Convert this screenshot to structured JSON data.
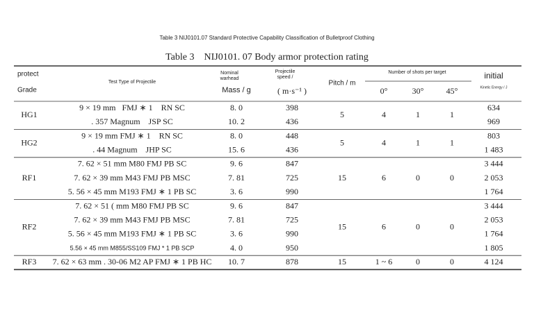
{
  "title": "Table 3 NIJ0101.07 Standard Protective Capability Classification of Bulletproof Clothing",
  "caption": "Table 3    NIJ0101. 07 Body armor protection rating",
  "header": {
    "grade": [
      "protect",
      "Grade"
    ],
    "projectile": "Test Type of Projectile",
    "mass": [
      "Nominal",
      "warhead",
      "Mass / g"
    ],
    "speed": [
      "Projectile",
      "speed /",
      "( m·s⁻¹ )"
    ],
    "pitch": "Pitch / m",
    "shots": "Number of shots per target",
    "angles": [
      "0°",
      "30°",
      "45°"
    ],
    "energy": [
      "initial",
      "Kinetic Energy / J"
    ]
  },
  "groups": [
    {
      "grade": "HG1",
      "pitch": "5",
      "shots": [
        "4",
        "1",
        "1"
      ],
      "rows": [
        [
          "9 × 19 mm   FMJ ∗ 1    RN SC",
          "8. 0",
          "398",
          "634"
        ],
        [
          ". 357 Magnum    JSP SC",
          "10. 2",
          "436",
          "969"
        ]
      ]
    },
    {
      "grade": "HG2",
      "pitch": "5",
      "shots": [
        "4",
        "1",
        "1"
      ],
      "rows": [
        [
          "9 × 19 mm FMJ ∗ 1    RN SC",
          "8. 0",
          "448",
          "803"
        ],
        [
          ". 44 Magnum    JHP SC",
          "15. 6",
          "436",
          "1 483"
        ]
      ]
    },
    {
      "grade": "RF1",
      "pitch": "15",
      "shots": [
        "6",
        "0",
        "0"
      ],
      "rows": [
        [
          "7. 62 × 51 mm M80 FMJ PB SC",
          "9. 6",
          "847",
          "3 444"
        ],
        [
          "7. 62 × 39 mm M43 FMJ PB MSC",
          "7. 81",
          "725",
          "2 053"
        ],
        [
          "5. 56 × 45 mm M193 FMJ ∗ 1 PB SC",
          "3. 6",
          "990",
          "1 764"
        ]
      ]
    },
    {
      "grade": "RF2",
      "pitch": "15",
      "shots": [
        "6",
        "0",
        "0"
      ],
      "rows": [
        [
          "7. 62 × 51 ( mm M80 FMJ PB SC",
          "9. 6",
          "847",
          "3 444"
        ],
        [
          "7. 62 × 39 mm M43 FMJ PB MSC",
          "7. 81",
          "725",
          "2 053"
        ],
        [
          "5. 56 × 45 mm M193 FMJ ∗ 1 PB SC",
          "3. 6",
          "990",
          "1 764"
        ],
        [
          "5.56 × 45 mm M855/SS109 FMJ * 1 PB SCP",
          "4. 0",
          "950",
          "1 805"
        ]
      ]
    },
    {
      "grade": "RF3",
      "pitch": "15",
      "shots": [
        "1 ~ 6",
        "0",
        "0"
      ],
      "rows": [
        [
          "7. 62 × 63 mm . 30-06 M2 AP FMJ ∗ 1 PB HC",
          "10. 7",
          "878",
          "4 124"
        ]
      ]
    }
  ]
}
